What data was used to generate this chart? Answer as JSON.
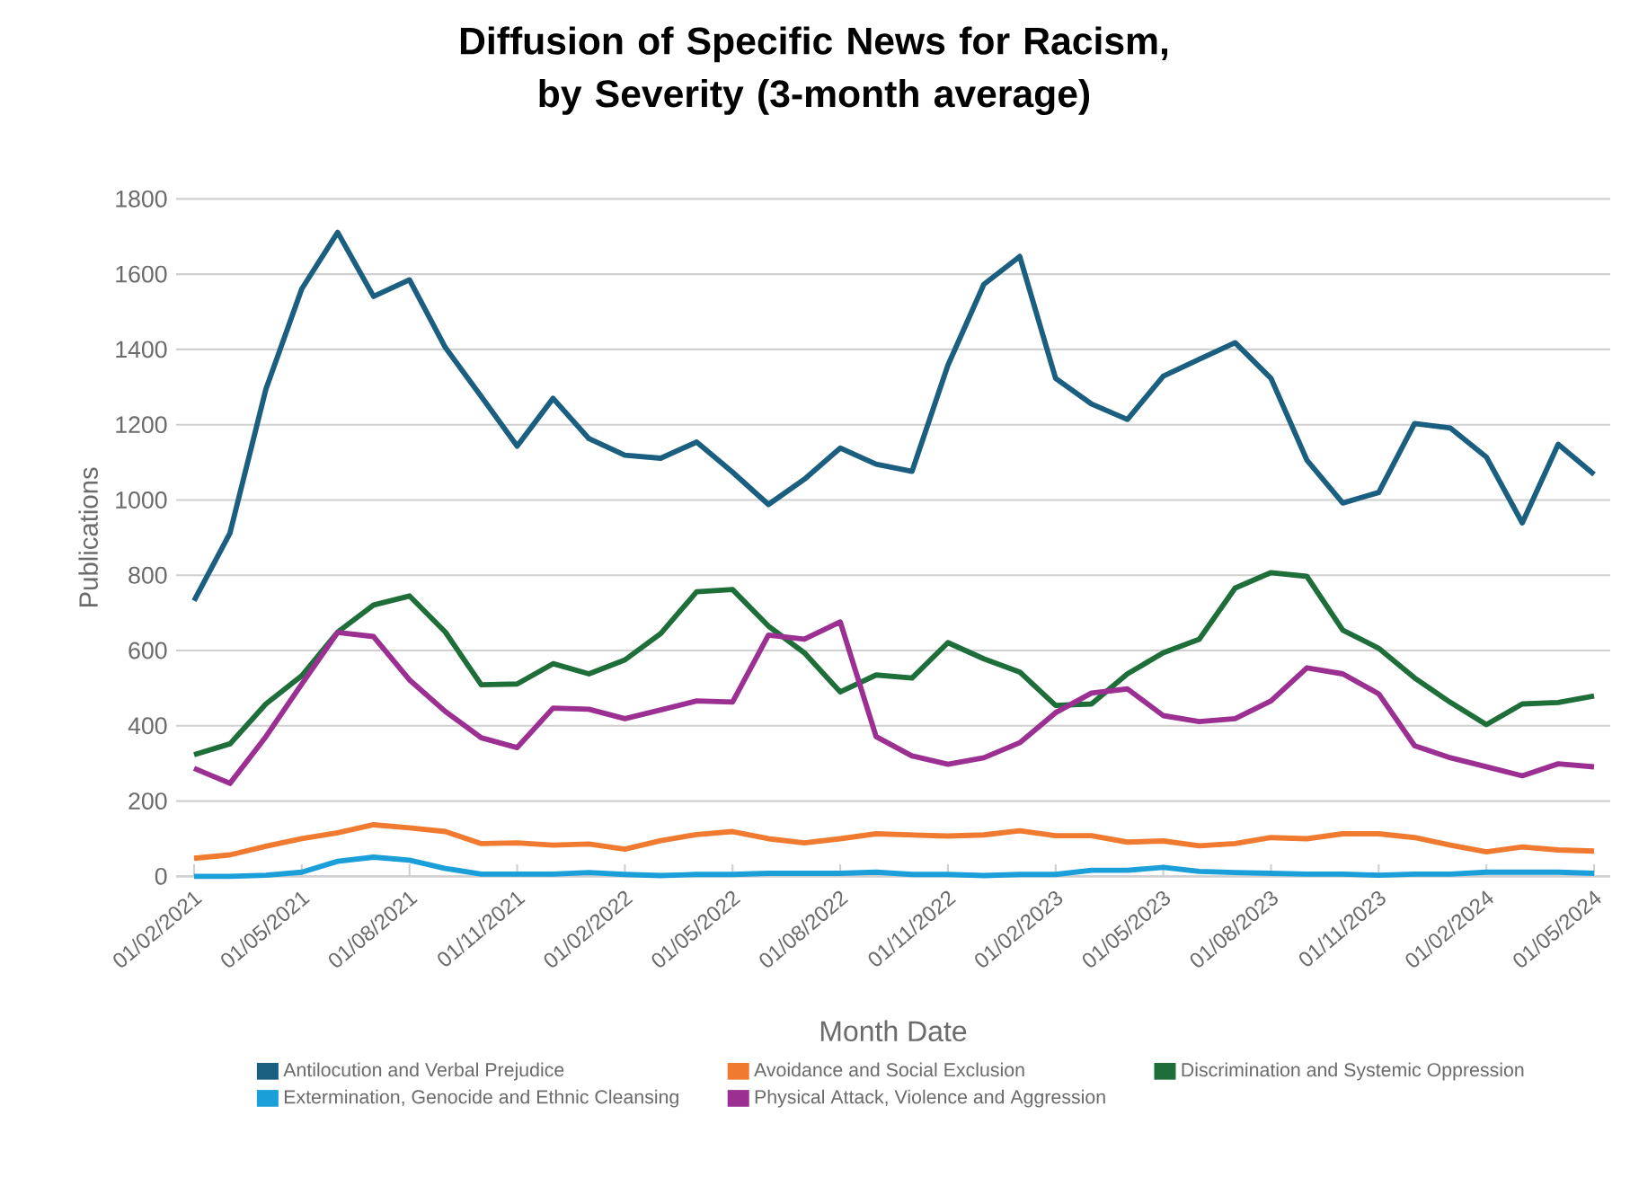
{
  "chart_data": {
    "type": "line",
    "title": "Diffusion of Specific News for Racism, by Severity (3-month average)",
    "xlabel": "Month Date",
    "ylabel": "Publications",
    "categories": [
      "01/02/2021",
      null,
      null,
      "01/05/2021",
      null,
      null,
      "01/08/2021",
      null,
      null,
      "01/11/2021",
      null,
      null,
      "01/02/2022",
      null,
      null,
      "01/05/2022",
      null,
      null,
      "01/08/2022",
      null,
      null,
      "01/11/2022",
      null,
      null,
      "01/02/2023",
      null,
      null,
      "01/05/2023",
      null,
      null,
      "01/08/2023",
      null,
      null,
      "01/11/2023",
      null,
      null,
      "01/02/2024",
      null,
      null,
      "01/05/2024"
    ],
    "series": [
      {
        "name": "Antilocution and Verbal Prejudice",
        "color": "#1a5e80",
        "values": [
          732,
          912,
          1294,
          1561,
          1711,
          1541,
          1585,
          1405,
          1275,
          1143,
          1270,
          1163,
          1119,
          1111,
          1154,
          1074,
          988,
          1055,
          1138,
          1095,
          1076,
          1358,
          1573,
          1647,
          1323,
          1255,
          1214,
          1329,
          1374,
          1418,
          1323,
          1106,
          992,
          1020,
          1203,
          1191,
          1114,
          939,
          1148,
          1068
        ]
      },
      {
        "name": "Avoidance and Social Exclusion",
        "color": "#ef7a30",
        "values": [
          48,
          57,
          80,
          100,
          116,
          137,
          129,
          119,
          87,
          89,
          83,
          86,
          72,
          95,
          111,
          119,
          100,
          89,
          100,
          113,
          110,
          107,
          110,
          121,
          108,
          108,
          91,
          94,
          81,
          87,
          103,
          100,
          113,
          113,
          103,
          83,
          65,
          78,
          70,
          67
        ]
      },
      {
        "name": "Discrimination and Systemic Oppression",
        "color": "#1e6e3a",
        "values": [
          323,
          352,
          458,
          533,
          649,
          721,
          745,
          649,
          509,
          511,
          565,
          538,
          575,
          645,
          756,
          762,
          665,
          594,
          490,
          535,
          527,
          621,
          578,
          543,
          454,
          458,
          538,
          594,
          630,
          766,
          807,
          797,
          654,
          606,
          527,
          462,
          403,
          458,
          462,
          479
        ]
      },
      {
        "name": "Extermination, Genocide and Ethnic Cleansing",
        "color": "#1a9fd9",
        "values": [
          0,
          0,
          3,
          11,
          40,
          51,
          43,
          21,
          6,
          6,
          6,
          10,
          5,
          2,
          5,
          5,
          8,
          8,
          8,
          11,
          5,
          5,
          2,
          5,
          5,
          16,
          16,
          24,
          13,
          10,
          8,
          6,
          6,
          3,
          6,
          6,
          11,
          11,
          11,
          8
        ]
      },
      {
        "name": "Physical Attack, Violence and Aggression",
        "color": "#9b2f92",
        "values": [
          287,
          247,
          371,
          511,
          648,
          637,
          522,
          438,
          368,
          342,
          447,
          444,
          419,
          442,
          466,
          463,
          641,
          630,
          676,
          371,
          320,
          298,
          315,
          355,
          435,
          487,
          498,
          427,
          411,
          419,
          466,
          554,
          538,
          485,
          347,
          315,
          291,
          267,
          299,
          291
        ]
      }
    ],
    "ylim": [
      0,
      1800
    ],
    "yticks": [
      0,
      200,
      400,
      600,
      800,
      1000,
      1200,
      1400,
      1600,
      1800
    ],
    "grid": "y",
    "legend": "bottom",
    "marker": "none",
    "line_style": "solid"
  }
}
